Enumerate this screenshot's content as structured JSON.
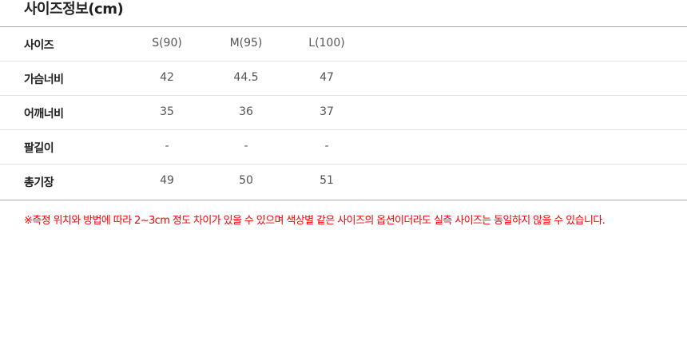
{
  "title": "사이즈정보(cm)",
  "table": {
    "header": {
      "label": "사이즈",
      "values": [
        "S(90)",
        "M(95)",
        "L(100)"
      ]
    },
    "rows": [
      {
        "label": "가슴너비",
        "values": [
          "42",
          "44.5",
          "47"
        ]
      },
      {
        "label": "어깨너비",
        "values": [
          "35",
          "36",
          "37"
        ]
      },
      {
        "label": "팔길이",
        "values": [
          "-",
          "-",
          "-"
        ]
      },
      {
        "label": "총기장",
        "values": [
          "49",
          "50",
          "51"
        ]
      }
    ]
  },
  "note": "※측정 위치와 방법에 따라 2~3cm 정도 차이가 있을 수 있으며 색상별 같은 사이즈의 옵션이더라도 실측 사이즈는 동일하지 않을 수 있습니다.",
  "colors": {
    "note": "#ff0000"
  }
}
